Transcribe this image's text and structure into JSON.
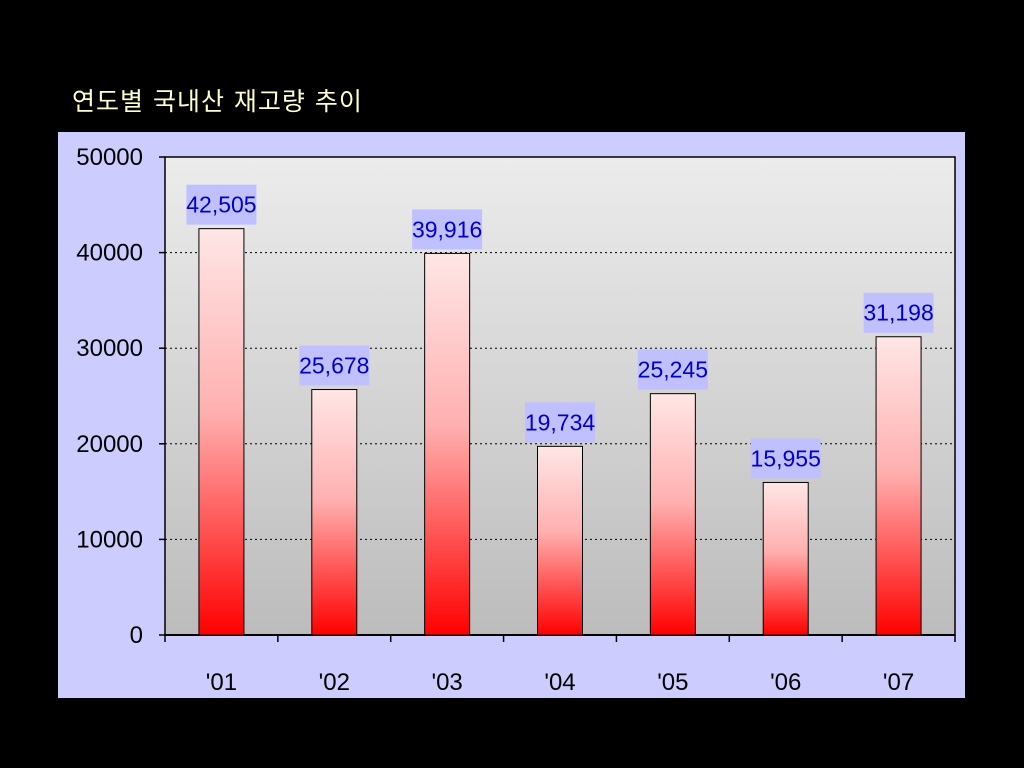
{
  "chart_data": {
    "type": "bar",
    "title": "연도별 국내산 재고량 추이",
    "categories": [
      "'01",
      "'02",
      "'03",
      "'04",
      "'05",
      "'06",
      "'07"
    ],
    "values": [
      42505,
      25678,
      39916,
      19734,
      25245,
      15955,
      31198
    ],
    "value_labels": [
      "42,505",
      "25,678",
      "39,916",
      "19,734",
      "25,245",
      "15,955",
      "31,198"
    ],
    "y_ticks": [
      0,
      10000,
      20000,
      30000,
      40000,
      50000
    ],
    "ylim": [
      0,
      50000
    ],
    "xlabel": "",
    "ylabel": "",
    "grid": true,
    "legend": false
  },
  "colors": {
    "background": "#000000",
    "panel": "#ccccff",
    "plot_top": "#ececec",
    "plot_bottom": "#bcbcbc",
    "bar_top": "#ffe6e6",
    "bar_bottom": "#ff0000",
    "label_box": "#c0c0ff",
    "label_text": "#0000cc",
    "title_text": "#ffffcc"
  }
}
